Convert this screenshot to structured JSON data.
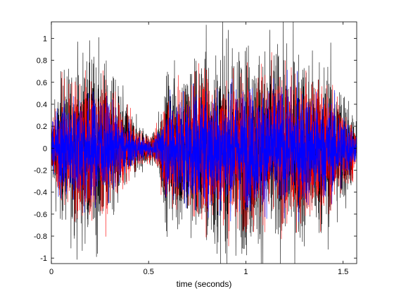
{
  "chart_data": {
    "type": "line",
    "title": "",
    "xlabel": "time (seconds)",
    "ylabel": "",
    "xlim": [
      0,
      1.57
    ],
    "ylim": [
      -1.05,
      1.15
    ],
    "x_ticks": [
      0,
      0.5,
      1,
      1.5
    ],
    "x_tick_labels": [
      "0",
      "0.5",
      "1",
      "1.5"
    ],
    "y_ticks": [
      -1,
      -0.8,
      -0.6,
      -0.4,
      -0.2,
      0,
      0.2,
      0.4,
      0.6,
      0.8,
      1
    ],
    "y_tick_labels": [
      "-1",
      "-0.8",
      "-0.6",
      "-0.4",
      "-0.2",
      "0",
      "0.2",
      "0.4",
      "0.6",
      "0.8",
      "1"
    ],
    "grid": false,
    "legend": null,
    "series": [
      {
        "color": "#000000",
        "envelope": {
          "x": [
            0,
            0.05,
            0.15,
            0.25,
            0.35,
            0.45,
            0.53,
            0.6,
            0.75,
            0.9,
            1.0,
            1.1,
            1.25,
            1.4,
            1.5,
            1.57
          ],
          "amplitude": [
            0.25,
            0.6,
            0.78,
            0.75,
            0.5,
            0.2,
            0.12,
            0.65,
            0.82,
            0.85,
            0.85,
            0.84,
            0.82,
            0.75,
            0.55,
            0.2
          ]
        }
      },
      {
        "color": "#ff0000",
        "envelope": {
          "x": [
            0,
            0.05,
            0.15,
            0.25,
            0.35,
            0.45,
            0.53,
            0.6,
            0.75,
            0.9,
            1.0,
            1.1,
            1.25,
            1.4,
            1.5,
            1.57
          ],
          "amplitude": [
            0.2,
            0.5,
            0.62,
            0.58,
            0.35,
            0.15,
            0.1,
            0.52,
            0.6,
            0.62,
            0.62,
            0.62,
            0.6,
            0.55,
            0.4,
            0.15
          ]
        }
      },
      {
        "color": "#0000ff",
        "envelope": {
          "x": [
            0,
            0.05,
            0.15,
            0.25,
            0.35,
            0.45,
            0.53,
            0.6,
            0.75,
            0.9,
            1.0,
            1.1,
            1.25,
            1.4,
            1.5,
            1.57
          ],
          "amplitude": [
            0.15,
            0.38,
            0.46,
            0.44,
            0.28,
            0.1,
            0.06,
            0.4,
            0.48,
            0.5,
            0.5,
            0.5,
            0.48,
            0.44,
            0.32,
            0.1
          ]
        }
      }
    ]
  }
}
